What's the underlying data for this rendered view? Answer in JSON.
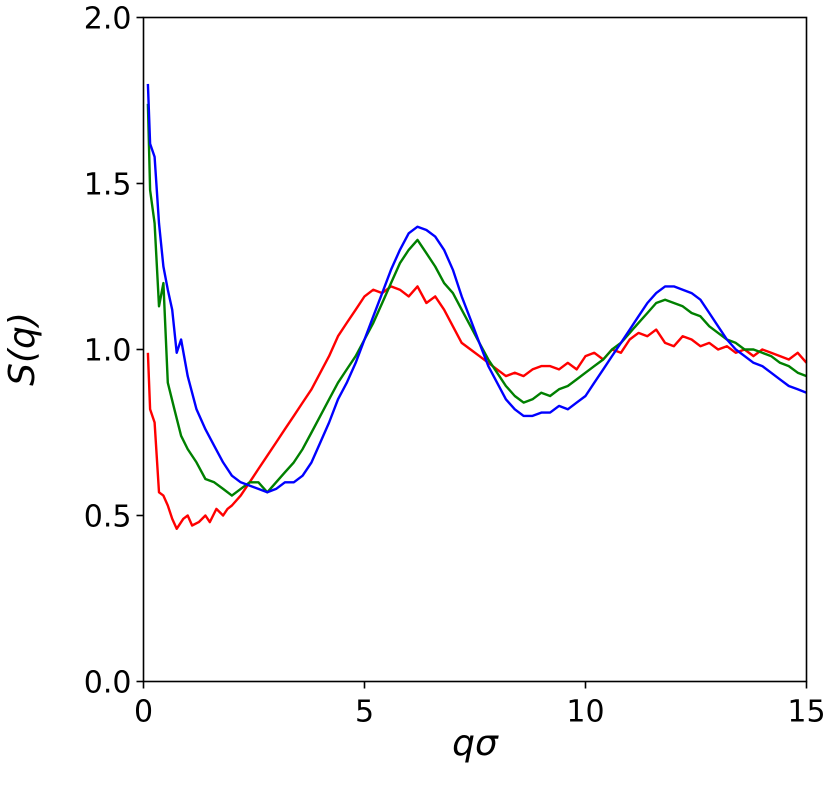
{
  "chart_data": {
    "type": "line",
    "xlabel": "qσ",
    "ylabel": "S(q)",
    "xlim": [
      0,
      15
    ],
    "ylim": [
      0,
      2
    ],
    "xticks": [
      "0",
      "5",
      "10",
      "15"
    ],
    "yticks": [
      "0.0",
      "0.5",
      "1.0",
      "1.5",
      "2.0"
    ],
    "grid": false,
    "legend": "none",
    "series": [
      {
        "color": "#ff0000",
        "x": [
          0.1,
          0.15,
          0.25,
          0.35,
          0.45,
          0.55,
          0.65,
          0.75,
          0.9,
          1.0,
          1.1,
          1.25,
          1.4,
          1.5,
          1.65,
          1.8,
          1.9,
          2.0,
          2.2,
          2.4,
          2.6,
          2.8,
          3.0,
          3.2,
          3.4,
          3.6,
          3.8,
          4.0,
          4.2,
          4.4,
          4.6,
          4.8,
          5.0,
          5.2,
          5.4,
          5.6,
          5.8,
          6.0,
          6.2,
          6.4,
          6.6,
          6.8,
          7.0,
          7.2,
          7.4,
          7.6,
          7.8,
          8.0,
          8.2,
          8.4,
          8.6,
          8.8,
          9.0,
          9.2,
          9.4,
          9.6,
          9.8,
          10.0,
          10.2,
          10.4,
          10.6,
          10.8,
          11.0,
          11.2,
          11.4,
          11.6,
          11.8,
          12.0,
          12.2,
          12.4,
          12.6,
          12.8,
          13.0,
          13.2,
          13.4,
          13.6,
          13.8,
          14.0,
          14.2,
          14.4,
          14.6,
          14.8,
          15.0
        ],
        "values": [
          0.99,
          0.82,
          0.78,
          0.57,
          0.56,
          0.53,
          0.49,
          0.46,
          0.49,
          0.5,
          0.47,
          0.48,
          0.5,
          0.48,
          0.52,
          0.5,
          0.52,
          0.53,
          0.56,
          0.6,
          0.64,
          0.68,
          0.72,
          0.76,
          0.8,
          0.84,
          0.88,
          0.93,
          0.98,
          1.04,
          1.08,
          1.12,
          1.16,
          1.18,
          1.17,
          1.19,
          1.18,
          1.16,
          1.19,
          1.14,
          1.16,
          1.12,
          1.07,
          1.02,
          1.0,
          0.98,
          0.96,
          0.94,
          0.92,
          0.93,
          0.92,
          0.94,
          0.95,
          0.95,
          0.94,
          0.96,
          0.94,
          0.98,
          0.99,
          0.97,
          1.0,
          0.99,
          1.03,
          1.05,
          1.04,
          1.06,
          1.02,
          1.01,
          1.04,
          1.03,
          1.01,
          1.02,
          1.0,
          1.01,
          0.99,
          1.0,
          0.98,
          1.0,
          0.99,
          0.98,
          0.97,
          0.99,
          0.96
        ]
      },
      {
        "color": "#008000",
        "x": [
          0.1,
          0.15,
          0.25,
          0.35,
          0.45,
          0.55,
          0.7,
          0.85,
          1.0,
          1.2,
          1.4,
          1.6,
          1.8,
          2.0,
          2.2,
          2.4,
          2.6,
          2.8,
          3.0,
          3.2,
          3.4,
          3.6,
          3.8,
          4.0,
          4.2,
          4.4,
          4.6,
          4.8,
          5.0,
          5.2,
          5.4,
          5.6,
          5.8,
          6.0,
          6.2,
          6.4,
          6.6,
          6.8,
          7.0,
          7.2,
          7.4,
          7.6,
          7.8,
          8.0,
          8.2,
          8.4,
          8.6,
          8.8,
          9.0,
          9.2,
          9.4,
          9.6,
          9.8,
          10.0,
          10.2,
          10.4,
          10.6,
          10.8,
          11.0,
          11.2,
          11.4,
          11.6,
          11.8,
          12.0,
          12.2,
          12.4,
          12.6,
          12.8,
          13.0,
          13.2,
          13.4,
          13.6,
          13.8,
          14.0,
          14.2,
          14.4,
          14.6,
          14.8,
          15.0
        ],
        "values": [
          1.74,
          1.48,
          1.38,
          1.13,
          1.2,
          0.9,
          0.82,
          0.74,
          0.7,
          0.66,
          0.61,
          0.6,
          0.58,
          0.56,
          0.58,
          0.6,
          0.6,
          0.57,
          0.6,
          0.63,
          0.66,
          0.7,
          0.75,
          0.8,
          0.85,
          0.9,
          0.94,
          0.98,
          1.03,
          1.08,
          1.14,
          1.2,
          1.26,
          1.3,
          1.33,
          1.29,
          1.25,
          1.2,
          1.17,
          1.12,
          1.07,
          1.02,
          0.97,
          0.93,
          0.89,
          0.86,
          0.84,
          0.85,
          0.87,
          0.86,
          0.88,
          0.89,
          0.91,
          0.93,
          0.95,
          0.97,
          1.0,
          1.02,
          1.05,
          1.08,
          1.11,
          1.14,
          1.15,
          1.14,
          1.13,
          1.11,
          1.1,
          1.07,
          1.05,
          1.03,
          1.02,
          1.0,
          1.0,
          0.99,
          0.98,
          0.96,
          0.95,
          0.93,
          0.92
        ]
      },
      {
        "color": "#0000ff",
        "x": [
          0.1,
          0.15,
          0.25,
          0.35,
          0.45,
          0.55,
          0.65,
          0.75,
          0.85,
          1.0,
          1.2,
          1.4,
          1.6,
          1.8,
          2.0,
          2.2,
          2.4,
          2.6,
          2.8,
          3.0,
          3.2,
          3.4,
          3.6,
          3.8,
          4.0,
          4.2,
          4.4,
          4.6,
          4.8,
          5.0,
          5.2,
          5.4,
          5.6,
          5.8,
          6.0,
          6.2,
          6.4,
          6.6,
          6.8,
          7.0,
          7.2,
          7.4,
          7.6,
          7.8,
          8.0,
          8.2,
          8.4,
          8.6,
          8.8,
          9.0,
          9.2,
          9.4,
          9.6,
          9.8,
          10.0,
          10.2,
          10.4,
          10.6,
          10.8,
          11.0,
          11.2,
          11.4,
          11.6,
          11.8,
          12.0,
          12.2,
          12.4,
          12.6,
          12.8,
          13.0,
          13.2,
          13.4,
          13.6,
          13.8,
          14.0,
          14.2,
          14.4,
          14.6,
          14.8,
          15.0
        ],
        "values": [
          1.8,
          1.62,
          1.58,
          1.38,
          1.25,
          1.18,
          1.12,
          0.99,
          1.03,
          0.92,
          0.82,
          0.76,
          0.71,
          0.66,
          0.62,
          0.6,
          0.59,
          0.58,
          0.57,
          0.58,
          0.6,
          0.6,
          0.62,
          0.66,
          0.72,
          0.78,
          0.85,
          0.9,
          0.96,
          1.03,
          1.1,
          1.17,
          1.24,
          1.3,
          1.35,
          1.37,
          1.36,
          1.34,
          1.3,
          1.24,
          1.16,
          1.09,
          1.02,
          0.95,
          0.9,
          0.85,
          0.82,
          0.8,
          0.8,
          0.81,
          0.81,
          0.83,
          0.82,
          0.84,
          0.86,
          0.9,
          0.94,
          0.98,
          1.02,
          1.06,
          1.1,
          1.14,
          1.17,
          1.19,
          1.19,
          1.18,
          1.17,
          1.15,
          1.11,
          1.07,
          1.03,
          1.0,
          0.98,
          0.96,
          0.95,
          0.93,
          0.91,
          0.89,
          0.88,
          0.87
        ]
      }
    ]
  }
}
